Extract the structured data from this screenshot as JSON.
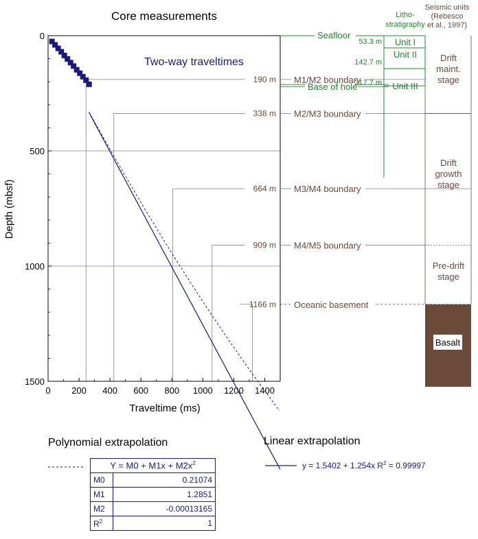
{
  "chart_data": {
    "type": "scatter",
    "title": "Core measurements",
    "xlabel": "Traveltime (ms)",
    "ylabel": "Depth (mbsf)",
    "xlim": [
      0,
      1500
    ],
    "ylim": [
      0,
      1500
    ],
    "y_inverted": true,
    "xticks": [
      "0",
      "200",
      "400",
      "600",
      "800",
      "1000",
      "1200",
      "1400"
    ],
    "yticks": [
      "0",
      "500",
      "1000",
      "1500"
    ],
    "annotation": "Two-way traveltimes",
    "core_points": {
      "x": [
        25,
        45,
        65,
        85,
        105,
        125,
        145,
        165,
        185,
        205,
        225,
        245,
        265
      ],
      "y": [
        25,
        40,
        55,
        70,
        86,
        101,
        117,
        132,
        148,
        163,
        178,
        193,
        211
      ]
    },
    "linear_fit": {
      "intercept": 1.5402,
      "slope": 1.254,
      "r2": 0.99997
    },
    "polynomial_fit": {
      "M0": 0.21074,
      "M1": 1.2851,
      "M2": -0.00013165,
      "R2": 1
    },
    "boundaries": [
      {
        "depth": 190,
        "label": "190 m",
        "name": "M1/M2 boundary",
        "traveltime": 245
      },
      {
        "depth": 338,
        "label": "338 m",
        "name": "M2/M3 boundary",
        "traveltime": 425
      },
      {
        "depth": 664,
        "label": "664 m",
        "name": "M3/M4 boundary",
        "traveltime": 805
      },
      {
        "depth": 909,
        "label": "909 m",
        "name": "M4/M5 boundary",
        "traveltime": 1060
      },
      {
        "depth": 1166,
        "label": "1166 m",
        "name": "Oceanic basement",
        "traveltime": 1320
      }
    ]
  },
  "right_panel": {
    "seafloor": "Seafloor",
    "base_of_hole": "Base of hole",
    "litho_header": "Litho-stratigraphy",
    "litho_header_lines": [
      "Litho-",
      "stratigraphy"
    ],
    "seismic_header_lines": [
      "Seismic units",
      "(Rebesco",
      "et al., 1997)"
    ],
    "litho_units": [
      {
        "name": "Unit I",
        "top": 0,
        "base": 53.3,
        "base_label": "53.3 m"
      },
      {
        "name": "Unit II",
        "top": 53.3,
        "base": 142.7,
        "base_label": "142.7 m"
      },
      {
        "name": "Unit III",
        "top": 142.7,
        "base": 217.7,
        "base_label": "217.7 m"
      }
    ],
    "seismic_stages": [
      {
        "lines": [
          "Drift",
          "maint.",
          "stage"
        ],
        "top": 0,
        "base": 338
      },
      {
        "lines": [
          "Drift",
          "growth",
          "stage"
        ],
        "top": 338,
        "base": 909
      },
      {
        "lines": [
          "Pre-drift",
          "stage"
        ],
        "top": 909,
        "base": 1166
      },
      {
        "lines": [
          "Basalt"
        ],
        "top": 1166,
        "base": 1500
      }
    ]
  },
  "legend": {
    "poly_title": "Polynomial extrapolation",
    "linear_title": "Linear extrapolation",
    "poly_equation": "Y = M0 + M1x + M2x",
    "poly_equation_sup": "2",
    "linear_equation": "y = 1.5402 + 1.254x R",
    "linear_equation_sup": "2",
    "linear_equation_tail": " = 0.99997",
    "rows": [
      {
        "key": "M0",
        "key_sup": "",
        "value": "0.21074"
      },
      {
        "key": "M1",
        "key_sup": "",
        "value": "1.2851"
      },
      {
        "key": "M2",
        "key_sup": "",
        "value": "-0.00013165"
      },
      {
        "key": "R",
        "key_sup": "2",
        "value": "1"
      }
    ]
  },
  "colors": {
    "navy": "#1a1a7a",
    "brown": "#6b4a3a",
    "green": "#1a8c2a",
    "basalt": "#6b4a3a",
    "grid": "#808080",
    "blue_grid": "#7b7bc8"
  }
}
